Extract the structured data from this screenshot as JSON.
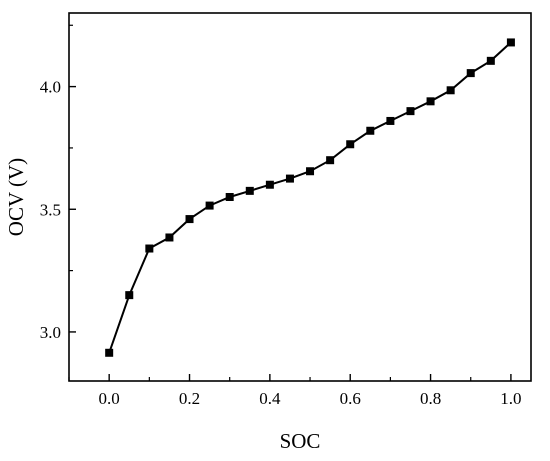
{
  "chart_data": {
    "type": "line",
    "title": "",
    "xlabel": "SOC",
    "ylabel": "OCV (V)",
    "xlim": [
      -0.1,
      1.05
    ],
    "ylim": [
      2.8,
      4.3
    ],
    "x_ticks": [
      0.0,
      0.2,
      0.4,
      0.6,
      0.8,
      1.0
    ],
    "x_tick_labels": [
      "0.0",
      "0.2",
      "0.4",
      "0.6",
      "0.8",
      "1.0"
    ],
    "y_ticks": [
      3.0,
      3.5,
      4.0
    ],
    "y_tick_labels": [
      "3.0",
      "3.5",
      "4.0"
    ],
    "grid": false,
    "legend": "none",
    "series": [
      {
        "marker": "square",
        "color": "#000000",
        "x": [
          0.0,
          0.05,
          0.1,
          0.15,
          0.2,
          0.25,
          0.3,
          0.35,
          0.4,
          0.45,
          0.5,
          0.55,
          0.6,
          0.65,
          0.7,
          0.75,
          0.8,
          0.85,
          0.9,
          0.95,
          1.0
        ],
        "y": [
          2.915,
          3.15,
          3.34,
          3.385,
          3.46,
          3.515,
          3.55,
          3.575,
          3.6,
          3.625,
          3.655,
          3.7,
          3.765,
          3.82,
          3.86,
          3.9,
          3.94,
          3.985,
          4.055,
          4.105,
          4.18
        ]
      }
    ]
  }
}
